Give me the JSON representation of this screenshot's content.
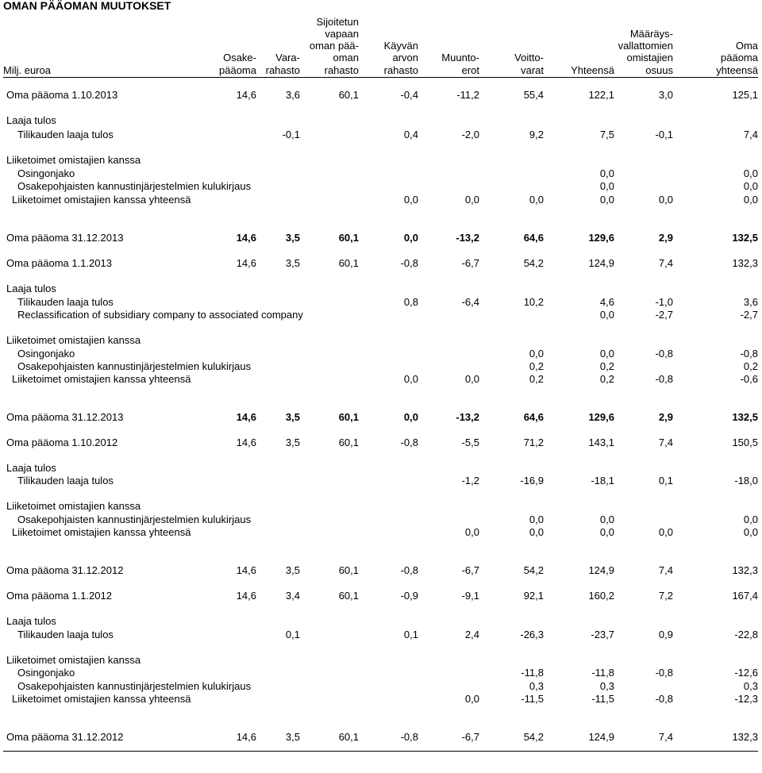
{
  "title": "OMAN PÄÄOMAN MUUTOKSET",
  "columns": [
    {
      "key": "label",
      "lines": [
        "Milj. euroa"
      ]
    },
    {
      "key": "osake",
      "lines": [
        "Osake-",
        "pääoma"
      ]
    },
    {
      "key": "vara",
      "lines": [
        "Vara-",
        "rahasto"
      ]
    },
    {
      "key": "svop",
      "lines": [
        "Sijoitetun",
        "vapaan",
        "oman pää-",
        "oman",
        "rahasto"
      ]
    },
    {
      "key": "kayvan",
      "lines": [
        "Käyvän",
        "arvon",
        "rahasto"
      ]
    },
    {
      "key": "muunto",
      "lines": [
        "Muunto-",
        "erot"
      ]
    },
    {
      "key": "voitto",
      "lines": [
        "Voitto-",
        "varat"
      ]
    },
    {
      "key": "yhteensa",
      "lines": [
        "Yhteensä"
      ]
    },
    {
      "key": "maar",
      "lines": [
        "Määräys-",
        "vallattomien",
        "omistajien",
        "osuus"
      ]
    },
    {
      "key": "oma",
      "lines": [
        "Oma",
        "pääoma",
        "yhteensä"
      ]
    }
  ],
  "rows": [
    {
      "label": "Oma pääoma 1.10.2013",
      "indent": 0,
      "bold": false,
      "values": [
        "14,6",
        "3,6",
        "60,1",
        "-0,4",
        "-11,2",
        "55,4",
        "122,1",
        "3,0",
        "125,1"
      ]
    },
    {
      "label": "Laaja tulos",
      "indent": 0,
      "bold": false,
      "values": []
    },
    {
      "label": "Tilikauden laaja tulos",
      "indent": 1,
      "bold": false,
      "values": [
        "",
        "-0,1",
        "",
        "0,4",
        "-2,0",
        "9,2",
        "7,5",
        "-0,1",
        "7,4"
      ]
    },
    {
      "label": "Liiketoimet omistajien kanssa",
      "indent": 0,
      "bold": false,
      "values": []
    },
    {
      "label": "Osingonjako",
      "indent": 1,
      "bold": false,
      "values": [
        "",
        "",
        "",
        "",
        "",
        "",
        "0,0",
        "",
        "0,0"
      ]
    },
    {
      "label": "Osakepohjaisten kannustinjärjestelmien kulukirjaus",
      "indent": 1,
      "bold": false,
      "values": [
        "",
        "",
        "",
        "",
        "",
        "",
        "0,0",
        "",
        "0,0"
      ]
    },
    {
      "label": "Liiketoimet omistajien kanssa yhteensä",
      "indent": 0.5,
      "bold": false,
      "values": [
        "",
        "",
        "",
        "0,0",
        "0,0",
        "0,0",
        "0,0",
        "0,0",
        "0,0"
      ]
    },
    {
      "label": "Oma pääoma 31.12.2013",
      "indent": 0,
      "bold": true,
      "values": [
        "14,6",
        "3,5",
        "60,1",
        "0,0",
        "-13,2",
        "64,6",
        "129,6",
        "2,9",
        "132,5"
      ]
    },
    {
      "label": "Oma pääoma 1.1.2013",
      "indent": 0,
      "bold": false,
      "values": [
        "14,6",
        "3,5",
        "60,1",
        "-0,8",
        "-6,7",
        "54,2",
        "124,9",
        "7,4",
        "132,3"
      ]
    },
    {
      "label": "Laaja tulos",
      "indent": 0,
      "bold": false,
      "values": []
    },
    {
      "label": "Tilikauden laaja tulos",
      "indent": 1,
      "bold": false,
      "values": [
        "",
        "",
        "",
        "0,8",
        "-6,4",
        "10,2",
        "4,6",
        "-1,0",
        "3,6"
      ]
    },
    {
      "label": "Reclassification of subsidiary company to associated company",
      "indent": 1,
      "bold": false,
      "values": [
        "",
        "",
        "",
        "",
        "",
        "",
        "0,0",
        "-2,7",
        "-2,7"
      ]
    },
    {
      "label": "Liiketoimet omistajien kanssa",
      "indent": 0,
      "bold": false,
      "values": []
    },
    {
      "label": "Osingonjako",
      "indent": 1,
      "bold": false,
      "values": [
        "",
        "",
        "",
        "",
        "",
        "0,0",
        "0,0",
        "-0,8",
        "-0,8"
      ]
    },
    {
      "label": "Osakepohjaisten kannustinjärjestelmien kulukirjaus",
      "indent": 1,
      "bold": false,
      "values": [
        "",
        "",
        "",
        "",
        "",
        "0,2",
        "0,2",
        "",
        "0,2"
      ]
    },
    {
      "label": "Liiketoimet omistajien kanssa yhteensä",
      "indent": 0.5,
      "bold": false,
      "values": [
        "",
        "",
        "",
        "0,0",
        "0,0",
        "0,2",
        "0,2",
        "-0,8",
        "-0,6"
      ]
    },
    {
      "label": "Oma pääoma 31.12.2013",
      "indent": 0,
      "bold": true,
      "values": [
        "14,6",
        "3,5",
        "60,1",
        "0,0",
        "-13,2",
        "64,6",
        "129,6",
        "2,9",
        "132,5"
      ]
    },
    {
      "label": "Oma pääoma 1.10.2012",
      "indent": 0,
      "bold": false,
      "values": [
        "14,6",
        "3,5",
        "60,1",
        "-0,8",
        "-5,5",
        "71,2",
        "143,1",
        "7,4",
        "150,5"
      ]
    },
    {
      "label": "Laaja tulos",
      "indent": 0,
      "bold": false,
      "values": []
    },
    {
      "label": "Tilikauden laaja tulos",
      "indent": 1,
      "bold": false,
      "values": [
        "",
        "",
        "",
        "",
        "-1,2",
        "-16,9",
        "-18,1",
        "0,1",
        "-18,0"
      ]
    },
    {
      "label": "Liiketoimet omistajien kanssa",
      "indent": 0,
      "bold": false,
      "values": []
    },
    {
      "label": "Osakepohjaisten kannustinjärjestelmien kulukirjaus",
      "indent": 1,
      "bold": false,
      "values": [
        "",
        "",
        "",
        "",
        "",
        "0,0",
        "0,0",
        "",
        "0,0"
      ]
    },
    {
      "label": "Liiketoimet omistajien kanssa yhteensä",
      "indent": 0.5,
      "bold": false,
      "values": [
        "",
        "",
        "",
        "",
        "0,0",
        "0,0",
        "0,0",
        "0,0",
        "0,0"
      ]
    },
    {
      "label": "Oma pääoma 31.12.2012",
      "indent": 0,
      "bold": false,
      "values": [
        "14,6",
        "3,5",
        "60,1",
        "-0,8",
        "-6,7",
        "54,2",
        "124,9",
        "7,4",
        "132,3"
      ]
    },
    {
      "label": "Oma pääoma 1.1.2012",
      "indent": 0,
      "bold": false,
      "values": [
        "14,6",
        "3,4",
        "60,1",
        "-0,9",
        "-9,1",
        "92,1",
        "160,2",
        "7,2",
        "167,4"
      ]
    },
    {
      "label": "Laaja tulos",
      "indent": 0,
      "bold": false,
      "values": []
    },
    {
      "label": "Tilikauden laaja tulos",
      "indent": 1,
      "bold": false,
      "values": [
        "",
        "0,1",
        "",
        "0,1",
        "2,4",
        "-26,3",
        "-23,7",
        "0,9",
        "-22,8"
      ]
    },
    {
      "label": "Liiketoimet omistajien kanssa",
      "indent": 0,
      "bold": false,
      "values": []
    },
    {
      "label": "Osingonjako",
      "indent": 1,
      "bold": false,
      "values": [
        "",
        "",
        "",
        "",
        "",
        "-11,8",
        "-11,8",
        "-0,8",
        "-12,6"
      ]
    },
    {
      "label": "Osakepohjaisten kannustinjärjestelmien kulukirjaus",
      "indent": 1,
      "bold": false,
      "values": [
        "",
        "",
        "",
        "",
        "",
        "0,3",
        "0,3",
        "",
        "0,3"
      ]
    },
    {
      "label": "Liiketoimet omistajien kanssa yhteensä",
      "indent": 0.5,
      "bold": false,
      "values": [
        "",
        "",
        "",
        "",
        "0,0",
        "-11,5",
        "-11,5",
        "-0,8",
        "-12,3"
      ]
    },
    {
      "label": "Oma pääoma 31.12.2012",
      "indent": 0,
      "bold": false,
      "values": [
        "14,6",
        "3,5",
        "60,1",
        "-0,8",
        "-6,7",
        "54,2",
        "124,9",
        "7,4",
        "132,3"
      ]
    }
  ]
}
